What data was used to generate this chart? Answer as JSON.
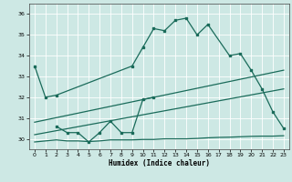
{
  "xlabel": "Humidex (Indice chaleur)",
  "bg_color": "#cde8e4",
  "line_color": "#1a6b5a",
  "grid_color": "#ffffff",
  "xlim": [
    -0.5,
    23.5
  ],
  "ylim": [
    29.5,
    36.5
  ],
  "xticks": [
    0,
    1,
    2,
    3,
    4,
    5,
    6,
    7,
    8,
    9,
    10,
    11,
    12,
    13,
    14,
    15,
    16,
    17,
    18,
    19,
    20,
    21,
    22,
    23
  ],
  "yticks": [
    30,
    31,
    32,
    33,
    34,
    35,
    36
  ],
  "line1_x": [
    0,
    1,
    2,
    9,
    10,
    11,
    12,
    13,
    14,
    15,
    16,
    18,
    19,
    20,
    21,
    22,
    23
  ],
  "line1_y": [
    33.5,
    32.0,
    32.1,
    33.5,
    34.4,
    35.3,
    35.2,
    35.7,
    35.8,
    35.0,
    35.5,
    34.0,
    34.1,
    33.3,
    32.4,
    31.3,
    30.5
  ],
  "line2_x": [
    2,
    3,
    4,
    5,
    6,
    7,
    8,
    9,
    10,
    11
  ],
  "line2_y": [
    30.6,
    30.3,
    30.3,
    29.85,
    30.3,
    30.85,
    30.3,
    30.3,
    31.9,
    32.0
  ],
  "line3_x": [
    0,
    23
  ],
  "line3_y": [
    30.8,
    33.3
  ],
  "line4_x": [
    0,
    23
  ],
  "line4_y": [
    30.2,
    32.4
  ],
  "line5_x": [
    0,
    1,
    2,
    3,
    4,
    5,
    6,
    7,
    8,
    9,
    10,
    11,
    12,
    13,
    14,
    15,
    16,
    17,
    18,
    19,
    20,
    21,
    22,
    23
  ],
  "line5_y": [
    29.85,
    29.9,
    29.95,
    29.9,
    29.9,
    29.87,
    29.9,
    29.95,
    29.95,
    29.95,
    29.97,
    29.97,
    30.0,
    30.0,
    30.0,
    30.02,
    30.05,
    30.07,
    30.08,
    30.1,
    30.12,
    30.13,
    30.13,
    30.15
  ]
}
